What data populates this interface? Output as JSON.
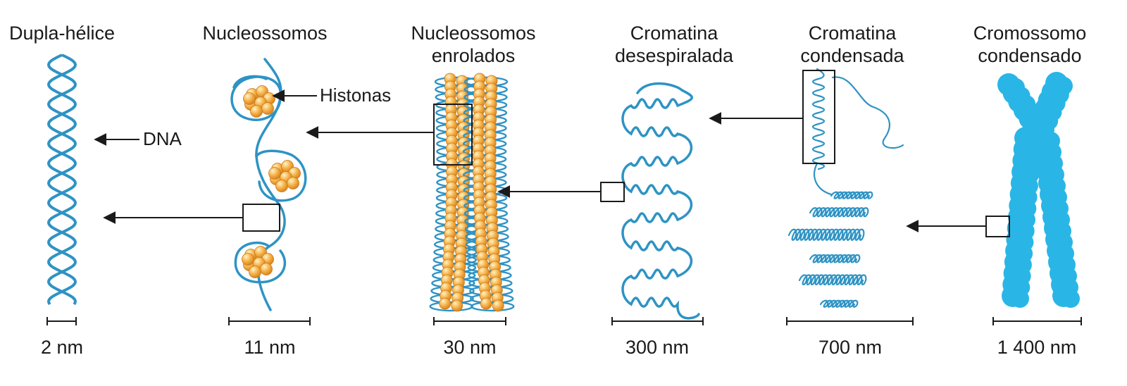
{
  "colors": {
    "strand": "#2e93c4",
    "chromosome": "#29b6e6",
    "histone": "#f6b24a",
    "histone_light": "#ffe9a8",
    "line": "#1a1a1a"
  },
  "stages": [
    {
      "label_lines": [
        "Dupla-hélice"
      ],
      "scale": "2 nm"
    },
    {
      "label_lines": [
        "Nucleossomos"
      ],
      "scale": "11 nm"
    },
    {
      "label_lines": [
        "Nucleossomos",
        "enrolados"
      ],
      "scale": "30 nm"
    },
    {
      "label_lines": [
        "Cromatina",
        "desespiralada"
      ],
      "scale": "300 nm"
    },
    {
      "label_lines": [
        "Cromatina",
        "condensada"
      ],
      "scale": "700 nm"
    },
    {
      "label_lines": [
        "Cromossomo",
        "condensado"
      ],
      "scale": "1 400 nm"
    }
  ],
  "annotations": {
    "dna": "DNA",
    "histones": "Histonas"
  }
}
